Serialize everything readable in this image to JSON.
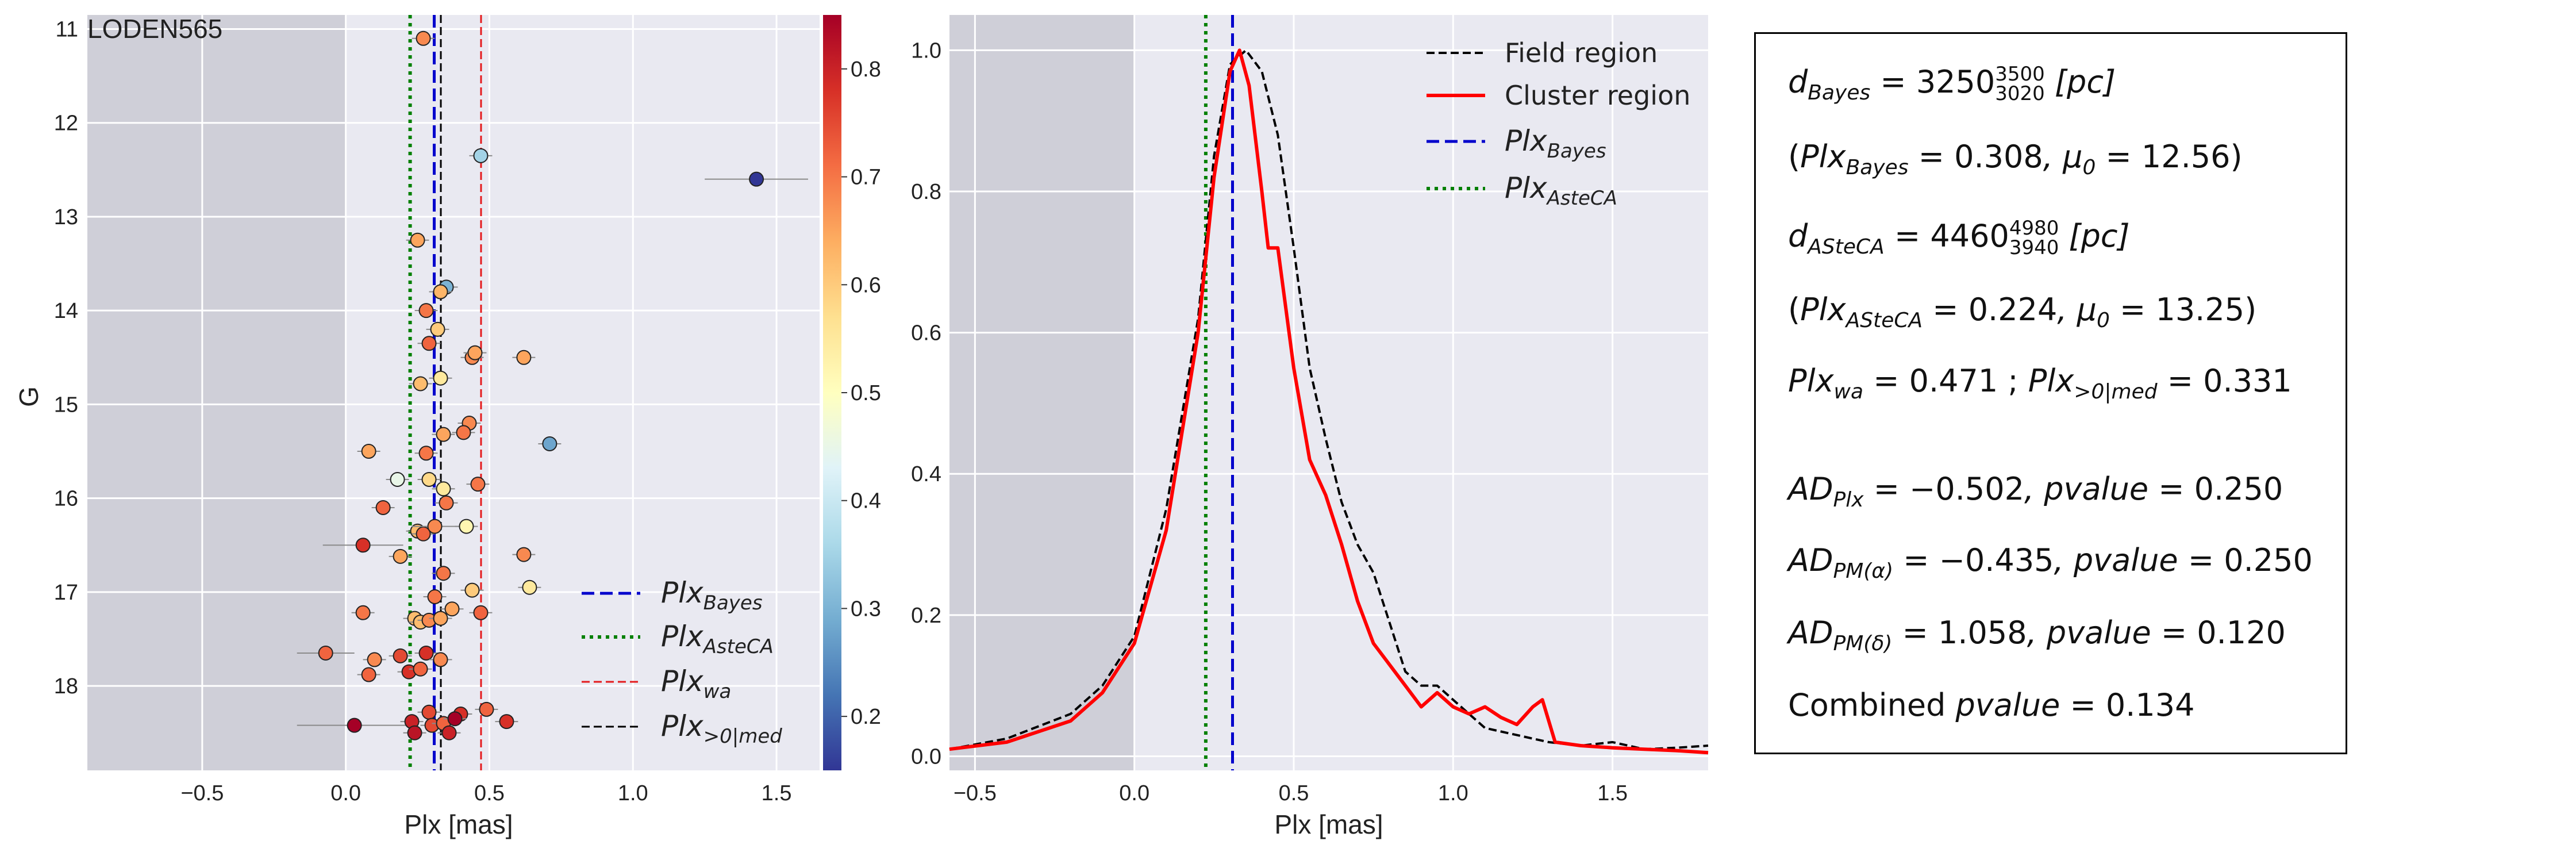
{
  "cluster_name": "LODEN565",
  "colors": {
    "background": "#e9e9f1",
    "grid": "#ffffff",
    "shaded_region": "#cfcfd8",
    "bayes_line": "#0000cc",
    "asteca_line": "#008000",
    "wa_line": "#e41a1c",
    "med_line": "#000000",
    "field_curve": "#000000",
    "cluster_curve": "#ff0000"
  },
  "panel1": {
    "ylabel": "G",
    "xlabel": "Plx [mas]",
    "colorbar_ticks": [
      "0.8",
      "0.7",
      "0.6",
      "0.5",
      "0.4",
      "0.3",
      "0.2"
    ],
    "legend": [
      {
        "id": "bayes",
        "base": "Plx",
        "sub": "Bayes"
      },
      {
        "id": "asteca",
        "base": "Plx",
        "sub": "AsteCA"
      },
      {
        "id": "wa",
        "base": "Plx",
        "sub": "wa"
      },
      {
        "id": "med",
        "base": "Plx",
        "sub": ">0|med"
      }
    ]
  },
  "panel2": {
    "xlabel": "Plx [mas]",
    "legend": [
      {
        "id": "field",
        "label": "Field region"
      },
      {
        "id": "cluster",
        "label": "Cluster region"
      },
      {
        "id": "bayes",
        "base": "Plx",
        "sub": "Bayes"
      },
      {
        "id": "asteca",
        "base": "Plx",
        "sub": "AsteCA"
      }
    ]
  },
  "stats": {
    "d_bayes": "3250",
    "d_bayes_upper": "3500",
    "d_bayes_lower": "3020",
    "plx_bayes": "0.308",
    "mu0_bayes": "12.56",
    "d_asteca": "4460",
    "d_asteca_upper": "4980",
    "d_asteca_lower": "3940",
    "plx_asteca": "0.224",
    "mu0_asteca": "13.25",
    "plx_wa": "0.471",
    "plx_med": "0.331",
    "ad_plx": "−0.502",
    "ad_plx_p": "0.250",
    "ad_pma": "−0.435",
    "ad_pma_p": "0.250",
    "ad_pmd": "1.058",
    "ad_pmd_p": "0.120",
    "combined_p": "0.134",
    "pc_unit": "[pc]",
    "combined_label": "Combined"
  },
  "chart_data": [
    {
      "type": "scatter",
      "xlabel": "Plx [mas]",
      "ylabel": "G",
      "xlim": [
        -0.9,
        1.65
      ],
      "ylim": [
        18.9,
        10.85
      ],
      "y_inverted": true,
      "xticks": [
        -0.5,
        0.0,
        0.5,
        1.0,
        1.5
      ],
      "yticks": [
        11,
        12,
        13,
        14,
        15,
        16,
        17,
        18
      ],
      "shaded_x": [
        -0.9,
        0.0
      ],
      "vlines": {
        "bayes": 0.308,
        "asteca": 0.224,
        "wa": 0.471,
        "med": 0.331
      },
      "colorbar": {
        "min": 0.15,
        "max": 0.85,
        "cmap": "RdYlBu_r"
      },
      "points": [
        {
          "x": 0.27,
          "y": 11.1,
          "c": 0.68
        },
        {
          "x": 0.47,
          "y": 12.35,
          "c": 0.35
        },
        {
          "x": 1.43,
          "y": 12.6,
          "c": 0.15,
          "xerr": 0.18
        },
        {
          "x": 0.25,
          "y": 13.25,
          "c": 0.65
        },
        {
          "x": 0.35,
          "y": 13.75,
          "c": 0.3
        },
        {
          "x": 0.33,
          "y": 13.8,
          "c": 0.63
        },
        {
          "x": 0.28,
          "y": 14.0,
          "c": 0.7
        },
        {
          "x": 0.32,
          "y": 14.2,
          "c": 0.6
        },
        {
          "x": 0.29,
          "y": 14.35,
          "c": 0.72
        },
        {
          "x": 0.44,
          "y": 14.5,
          "c": 0.68
        },
        {
          "x": 0.45,
          "y": 14.45,
          "c": 0.65
        },
        {
          "x": 0.62,
          "y": 14.5,
          "c": 0.65
        },
        {
          "x": 0.33,
          "y": 14.72,
          "c": 0.55
        },
        {
          "x": 0.26,
          "y": 14.78,
          "c": 0.62
        },
        {
          "x": 0.43,
          "y": 15.2,
          "c": 0.68
        },
        {
          "x": 0.34,
          "y": 15.32,
          "c": 0.65
        },
        {
          "x": 0.41,
          "y": 15.3,
          "c": 0.7
        },
        {
          "x": 0.71,
          "y": 15.42,
          "c": 0.28
        },
        {
          "x": 0.08,
          "y": 15.5,
          "c": 0.65
        },
        {
          "x": 0.28,
          "y": 15.52,
          "c": 0.7
        },
        {
          "x": 0.18,
          "y": 15.8,
          "c": 0.45
        },
        {
          "x": 0.29,
          "y": 15.8,
          "c": 0.58
        },
        {
          "x": 0.46,
          "y": 15.85,
          "c": 0.7
        },
        {
          "x": 0.34,
          "y": 15.9,
          "c": 0.55
        },
        {
          "x": 0.35,
          "y": 16.05,
          "c": 0.7
        },
        {
          "x": 0.13,
          "y": 16.1,
          "c": 0.72
        },
        {
          "x": 0.25,
          "y": 16.35,
          "c": 0.62
        },
        {
          "x": 0.27,
          "y": 16.38,
          "c": 0.72
        },
        {
          "x": 0.31,
          "y": 16.3,
          "c": 0.68,
          "xerr": 0.08
        },
        {
          "x": 0.42,
          "y": 16.3,
          "c": 0.52
        },
        {
          "x": 0.06,
          "y": 16.5,
          "c": 0.78,
          "xerr": 0.14
        },
        {
          "x": 0.19,
          "y": 16.62,
          "c": 0.65
        },
        {
          "x": 0.62,
          "y": 16.6,
          "c": 0.68
        },
        {
          "x": 0.34,
          "y": 16.8,
          "c": 0.7
        },
        {
          "x": 0.64,
          "y": 16.95,
          "c": 0.55
        },
        {
          "x": 0.44,
          "y": 16.98,
          "c": 0.6
        },
        {
          "x": 0.31,
          "y": 17.05,
          "c": 0.7
        },
        {
          "x": 0.37,
          "y": 17.18,
          "c": 0.65
        },
        {
          "x": 0.06,
          "y": 17.22,
          "c": 0.7
        },
        {
          "x": 0.24,
          "y": 17.28,
          "c": 0.62
        },
        {
          "x": 0.26,
          "y": 17.32,
          "c": 0.62
        },
        {
          "x": 0.29,
          "y": 17.3,
          "c": 0.68
        },
        {
          "x": 0.33,
          "y": 17.28,
          "c": 0.65
        },
        {
          "x": 0.47,
          "y": 17.22,
          "c": 0.72
        },
        {
          "x": -0.07,
          "y": 17.65,
          "c": 0.72,
          "xerr": 0.1
        },
        {
          "x": 0.1,
          "y": 17.72,
          "c": 0.68
        },
        {
          "x": 0.19,
          "y": 17.68,
          "c": 0.75
        },
        {
          "x": 0.28,
          "y": 17.65,
          "c": 0.78
        },
        {
          "x": 0.33,
          "y": 17.72,
          "c": 0.68
        },
        {
          "x": 0.08,
          "y": 17.88,
          "c": 0.72
        },
        {
          "x": 0.22,
          "y": 17.85,
          "c": 0.78
        },
        {
          "x": 0.26,
          "y": 17.82,
          "c": 0.72
        },
        {
          "x": 0.29,
          "y": 18.28,
          "c": 0.75
        },
        {
          "x": 0.4,
          "y": 18.3,
          "c": 0.78
        },
        {
          "x": 0.49,
          "y": 18.25,
          "c": 0.72
        },
        {
          "x": 0.03,
          "y": 18.42,
          "c": 0.85,
          "xerr": 0.2
        },
        {
          "x": 0.23,
          "y": 18.38,
          "c": 0.8
        },
        {
          "x": 0.3,
          "y": 18.42,
          "c": 0.75
        },
        {
          "x": 0.34,
          "y": 18.4,
          "c": 0.72
        },
        {
          "x": 0.38,
          "y": 18.35,
          "c": 0.85
        },
        {
          "x": 0.56,
          "y": 18.38,
          "c": 0.78
        },
        {
          "x": 0.24,
          "y": 18.5,
          "c": 0.82
        },
        {
          "x": 0.36,
          "y": 18.5,
          "c": 0.8
        }
      ]
    },
    {
      "type": "line",
      "xlabel": "Plx [mas]",
      "xlim": [
        -0.58,
        1.8
      ],
      "ylim": [
        -0.02,
        1.05
      ],
      "xticks": [
        -0.5,
        0.0,
        0.5,
        1.0,
        1.5
      ],
      "yticks": [
        0.0,
        0.2,
        0.4,
        0.6,
        0.8,
        1.0
      ],
      "shaded_x": [
        -0.58,
        0.0
      ],
      "vlines": {
        "bayes": 0.308,
        "asteca": 0.224
      },
      "series": [
        {
          "name": "Field region",
          "style": "dashed",
          "x": [
            -0.58,
            -0.4,
            -0.2,
            -0.1,
            0.0,
            0.1,
            0.2,
            0.25,
            0.3,
            0.35,
            0.4,
            0.45,
            0.5,
            0.55,
            0.6,
            0.65,
            0.7,
            0.75,
            0.8,
            0.85,
            0.9,
            0.95,
            1.0,
            1.05,
            1.1,
            1.2,
            1.3,
            1.4,
            1.5,
            1.6,
            1.7,
            1.8
          ],
          "y": [
            0.01,
            0.025,
            0.06,
            0.1,
            0.17,
            0.35,
            0.62,
            0.85,
            0.98,
            1.0,
            0.97,
            0.88,
            0.72,
            0.55,
            0.45,
            0.36,
            0.3,
            0.26,
            0.19,
            0.12,
            0.1,
            0.1,
            0.08,
            0.06,
            0.04,
            0.03,
            0.02,
            0.015,
            0.02,
            0.01,
            0.012,
            0.015
          ]
        },
        {
          "name": "Cluster region",
          "x": [
            -0.58,
            -0.4,
            -0.2,
            -0.1,
            0.0,
            0.1,
            0.2,
            0.25,
            0.3,
            0.33,
            0.36,
            0.4,
            0.42,
            0.45,
            0.5,
            0.55,
            0.6,
            0.65,
            0.7,
            0.75,
            0.8,
            0.85,
            0.9,
            0.95,
            1.0,
            1.05,
            1.1,
            1.15,
            1.2,
            1.25,
            1.28,
            1.32,
            1.4,
            1.5,
            1.6,
            1.7,
            1.8
          ],
          "y": [
            0.01,
            0.02,
            0.05,
            0.09,
            0.16,
            0.32,
            0.6,
            0.82,
            0.97,
            1.0,
            0.95,
            0.8,
            0.72,
            0.72,
            0.55,
            0.42,
            0.37,
            0.3,
            0.22,
            0.16,
            0.13,
            0.1,
            0.07,
            0.09,
            0.07,
            0.06,
            0.07,
            0.055,
            0.045,
            0.07,
            0.08,
            0.02,
            0.015,
            0.012,
            0.01,
            0.008,
            0.005
          ]
        }
      ]
    }
  ]
}
